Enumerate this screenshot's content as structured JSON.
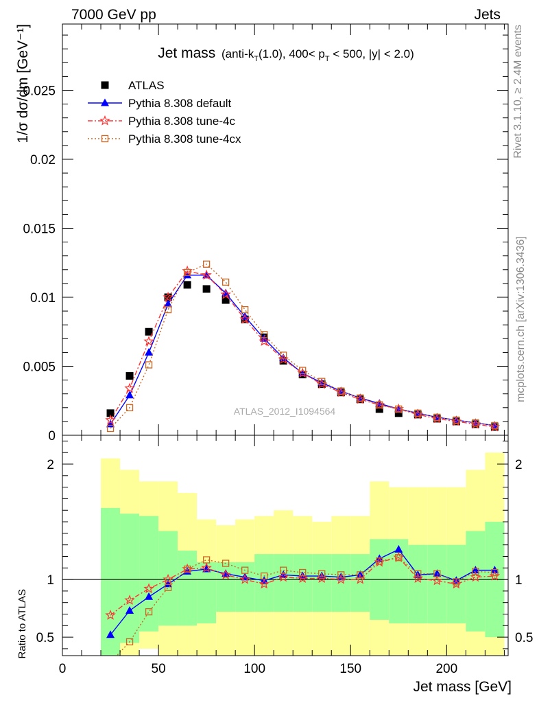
{
  "header": {
    "left": "7000 GeV pp",
    "right": "Jets"
  },
  "side_text": {
    "rivet": "Rivet 3.1.10, ≥ 2.4M events",
    "mcplots": "mcplots.cern.ch [arXiv:1306.3436]"
  },
  "watermark": "ATLAS_2012_I1094564",
  "title": {
    "main": "Jet mass",
    "cut_prefix": "(anti-k",
    "cut_sub": "T",
    "cut_mid": "(1.0), 400< p",
    "cut_sub2": "T",
    "cut_suffix": " < 500, |y| < 2.0)"
  },
  "axes": {
    "top_ylabel": "1/σ dσ/dm [GeV⁻¹]",
    "ratio_ylabel": "Ratio to ATLAS",
    "xlabel": "Jet mass [GeV]"
  },
  "chart_data": [
    {
      "type": "scatter",
      "panel": "main",
      "xlim": [
        0,
        232
      ],
      "ylim": [
        0,
        0.0298
      ],
      "xticks": [
        0,
        50,
        100,
        150,
        200
      ],
      "yticks": [
        0,
        0.005,
        0.01,
        0.015,
        0.02,
        0.025
      ],
      "ytick_labels": [
        "0",
        "0.005",
        "0.01",
        "0.015",
        "0.02",
        "0.025"
      ],
      "legend_position": "top-left",
      "x": [
        25,
        35,
        45,
        55,
        65,
        75,
        85,
        95,
        105,
        115,
        125,
        135,
        145,
        155,
        165,
        175,
        185,
        195,
        205,
        215,
        225
      ],
      "series": [
        {
          "name": "ATLAS",
          "color": "#000000",
          "marker": "square",
          "values": [
            0.0016,
            0.0043,
            0.0075,
            0.01,
            0.0109,
            0.0106,
            0.0098,
            0.0084,
            0.0071,
            0.0054,
            0.0044,
            0.0037,
            0.0031,
            0.0026,
            0.0019,
            0.0016,
            0.0015,
            0.0012,
            0.001,
            0.0008,
            0.0006
          ]
        },
        {
          "name": "Pythia 8.308 default",
          "color": "#0000ff",
          "marker": "triangle",
          "values": [
            0.0008,
            0.0029,
            0.006,
            0.0095,
            0.0116,
            0.0116,
            0.0103,
            0.0086,
            0.007,
            0.0056,
            0.0045,
            0.0038,
            0.0032,
            0.0027,
            0.0023,
            0.0019,
            0.0016,
            0.0013,
            0.0011,
            0.0009,
            0.0007
          ]
        },
        {
          "name": "Pythia 8.308 tune-4c",
          "color": "#ff3333",
          "marker": "star",
          "values": [
            0.0011,
            0.0034,
            0.0068,
            0.01,
            0.0119,
            0.0116,
            0.0102,
            0.0084,
            0.0068,
            0.0055,
            0.0045,
            0.0037,
            0.0031,
            0.0026,
            0.0022,
            0.0019,
            0.0015,
            0.0012,
            0.001,
            0.0008,
            0.0006
          ]
        },
        {
          "name": "Pythia 8.308 tune-4cx",
          "color": "#cc6622",
          "marker": "open-square",
          "values": [
            0.0005,
            0.002,
            0.0051,
            0.0091,
            0.0118,
            0.0124,
            0.0111,
            0.0091,
            0.0073,
            0.0058,
            0.0047,
            0.0039,
            0.0032,
            0.0027,
            0.0022,
            0.0019,
            0.0016,
            0.0013,
            0.0011,
            0.0009,
            0.0007
          ]
        }
      ]
    },
    {
      "type": "line",
      "panel": "ratio",
      "xlim": [
        0,
        232
      ],
      "ylim": [
        0.34,
        2.25
      ],
      "xticks": [
        0,
        50,
        100,
        150,
        200
      ],
      "xtick_labels": [
        "0",
        "50",
        "100",
        "150",
        "200"
      ],
      "yticks": [
        0.5,
        1,
        2
      ],
      "ytick_labels": [
        "0.5",
        "1",
        "2"
      ],
      "reference_line": 1,
      "bins": [
        [
          20,
          30
        ],
        [
          30,
          40
        ],
        [
          40,
          50
        ],
        [
          50,
          60
        ],
        [
          60,
          70
        ],
        [
          70,
          80
        ],
        [
          80,
          90
        ],
        [
          90,
          100
        ],
        [
          100,
          110
        ],
        [
          110,
          120
        ],
        [
          120,
          130
        ],
        [
          130,
          140
        ],
        [
          140,
          150
        ],
        [
          150,
          160
        ],
        [
          160,
          170
        ],
        [
          170,
          180
        ],
        [
          180,
          190
        ],
        [
          190,
          200
        ],
        [
          200,
          210
        ],
        [
          210,
          220
        ],
        [
          220,
          230
        ]
      ],
      "bands": {
        "outer_color": "#ffff99",
        "inner_color": "#99ff99",
        "outer_low": [
          0.34,
          0.34,
          0.4,
          0.34,
          0.34,
          0.34,
          0.34,
          0.34,
          0.34,
          0.34,
          0.34,
          0.34,
          0.34,
          0.34,
          0.34,
          0.34,
          0.34,
          0.34,
          0.34,
          0.34,
          0.34
        ],
        "outer_high": [
          2.05,
          1.95,
          1.85,
          1.85,
          1.75,
          1.52,
          1.47,
          1.52,
          1.55,
          1.6,
          1.55,
          1.5,
          1.55,
          1.55,
          1.85,
          1.8,
          1.8,
          1.8,
          1.8,
          1.95,
          2.1
        ],
        "inner_low": [
          0.34,
          0.45,
          0.55,
          0.6,
          0.6,
          0.62,
          0.72,
          0.72,
          0.72,
          0.72,
          0.72,
          0.72,
          0.72,
          0.72,
          0.65,
          0.62,
          0.62,
          0.62,
          0.62,
          0.55,
          0.5
        ],
        "inner_high": [
          1.62,
          1.57,
          1.55,
          1.42,
          1.25,
          1.15,
          1.15,
          1.15,
          1.22,
          1.22,
          1.22,
          1.22,
          1.22,
          1.22,
          1.35,
          1.35,
          1.3,
          1.3,
          1.3,
          1.42,
          1.5
        ]
      },
      "x": [
        25,
        35,
        45,
        55,
        65,
        75,
        85,
        95,
        105,
        115,
        125,
        135,
        145,
        155,
        165,
        175,
        185,
        195,
        205,
        215,
        225
      ],
      "series": [
        {
          "name": "Pythia 8.308 default",
          "color": "#0000ff",
          "marker": "triangle",
          "values": [
            0.52,
            0.73,
            0.85,
            0.96,
            1.07,
            1.09,
            1.05,
            1.02,
            0.99,
            1.04,
            1.03,
            1.03,
            1.02,
            1.04,
            1.18,
            1.26,
            1.04,
            1.05,
            0.99,
            1.08,
            1.08
          ]
        },
        {
          "name": "Pythia 8.308 tune-4c",
          "color": "#ff3333",
          "marker": "star",
          "values": [
            0.69,
            0.82,
            0.92,
            1.0,
            1.09,
            1.1,
            1.04,
            1.0,
            0.96,
            1.02,
            1.01,
            1.01,
            1.0,
            1.0,
            1.15,
            1.19,
            1.01,
            0.99,
            0.96,
            1.02,
            1.03
          ]
        },
        {
          "name": "Pythia 8.308 tune-4cx",
          "color": "#cc6622",
          "marker": "open-square",
          "values": [
            0.28,
            0.46,
            0.72,
            0.93,
            1.09,
            1.17,
            1.14,
            1.08,
            1.03,
            1.08,
            1.06,
            1.05,
            1.04,
            1.04,
            1.16,
            1.19,
            1.05,
            1.05,
            0.98,
            1.07,
            1.06
          ]
        }
      ]
    }
  ]
}
